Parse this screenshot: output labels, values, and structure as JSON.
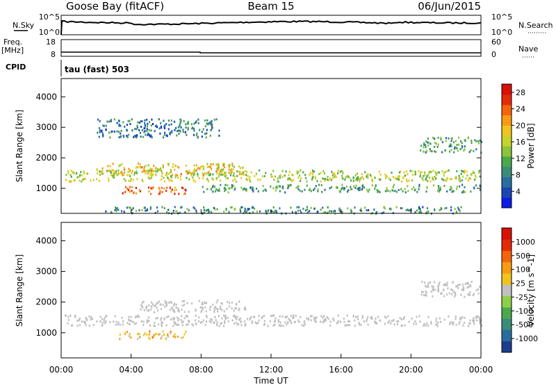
{
  "header": {
    "station": "Goose Bay (fitACF)",
    "beam": "Beam 15",
    "date": "06/Jun/2015"
  },
  "noise_panel": {
    "left_label": "N.Sky",
    "right_label": "N.Search",
    "left_ticks": [
      "10^5",
      "10^0"
    ],
    "right_ticks": [
      "10^5",
      "10^0"
    ]
  },
  "freq_panel": {
    "left_label_1": "Freq.",
    "left_label_2": "[MHz]",
    "right_label": "Nave",
    "left_ticks": [
      "18",
      "8"
    ],
    "right_ticks": [
      "60",
      "0"
    ]
  },
  "cpid": {
    "label": "CPID",
    "text": "tau (fast) 503"
  },
  "x_axis": {
    "label": "Time UT",
    "ticks": [
      "00:00",
      "04:00",
      "08:00",
      "12:00",
      "16:00",
      "20:00",
      "00:00"
    ]
  },
  "chart_data": [
    {
      "type": "heatmap",
      "panel": "power",
      "ylabel": "Slant Range [km]",
      "y_ticks": [
        1000,
        2000,
        3000,
        4000
      ],
      "ylim": [
        180,
        4600
      ],
      "xlim_hours": [
        0,
        24
      ],
      "colorbar": {
        "label": "Power [dB]",
        "ticks": [
          "4",
          "8",
          "12",
          "16",
          "20",
          "24",
          "28"
        ],
        "range": [
          0,
          30
        ],
        "colors": [
          "#0b1ee6",
          "#1846b4",
          "#2a6ca0",
          "#3a8c78",
          "#4ca84c",
          "#8cc43a",
          "#c8d22c",
          "#f0c41e",
          "#f89a14",
          "#f4640c",
          "#e42a08",
          "#d81006"
        ]
      },
      "bands": [
        {
          "t": [
            0.2,
            24
          ],
          "r": [
            1250,
            1620
          ],
          "value": 15,
          "note": "main echo band"
        },
        {
          "t": [
            2.0,
            10.5
          ],
          "r": [
            1450,
            1850
          ],
          "value": 18
        },
        {
          "t": [
            3.3,
            7.2
          ],
          "r": [
            830,
            1080
          ],
          "value": 24,
          "note": "strong echo patch"
        },
        {
          "t": [
            8.0,
            24
          ],
          "r": [
            900,
            1150
          ],
          "value": 10
        },
        {
          "t": [
            2.5,
            23
          ],
          "r": [
            200,
            420
          ],
          "value": 9
        },
        {
          "t": [
            2.0,
            9.0
          ],
          "r": [
            2700,
            3300
          ],
          "value": 7
        },
        {
          "t": [
            20.5,
            24
          ],
          "r": [
            2200,
            2700
          ],
          "value": 10
        }
      ]
    },
    {
      "type": "heatmap",
      "panel": "velocity",
      "ylabel": "Slant Range [km]",
      "y_ticks": [
        1000,
        2000,
        3000,
        4000
      ],
      "ylim": [
        180,
        4600
      ],
      "xlim_hours": [
        0,
        24
      ],
      "colorbar": {
        "label": "Velocity [m s^-1]",
        "ticks": [
          "1000",
          "500",
          "100",
          "25",
          "-25",
          "-100",
          "-500",
          "-1000"
        ],
        "range": [
          -1000,
          1000
        ],
        "colors": [
          "#1e3c8c",
          "#2a6ca0",
          "#3a8c78",
          "#4ca84c",
          "#8cd04a",
          "#c0c0c0",
          "#f0c41e",
          "#f89a14",
          "#f4640c",
          "#e42a08",
          "#d81006"
        ]
      },
      "bands": [
        {
          "t": [
            0.2,
            24
          ],
          "r": [
            1250,
            1600
          ],
          "value": 0,
          "note": "ground scatter (grey)"
        },
        {
          "t": [
            4.5,
            10.5
          ],
          "r": [
            1700,
            2100
          ],
          "value": 0,
          "note": "ground scatter (grey)"
        },
        {
          "t": [
            3.3,
            7.2
          ],
          "r": [
            830,
            1080
          ],
          "value": 150,
          "note": "green/orange patch"
        },
        {
          "t": [
            20.5,
            24
          ],
          "r": [
            2200,
            2700
          ],
          "value": 0
        }
      ]
    }
  ]
}
